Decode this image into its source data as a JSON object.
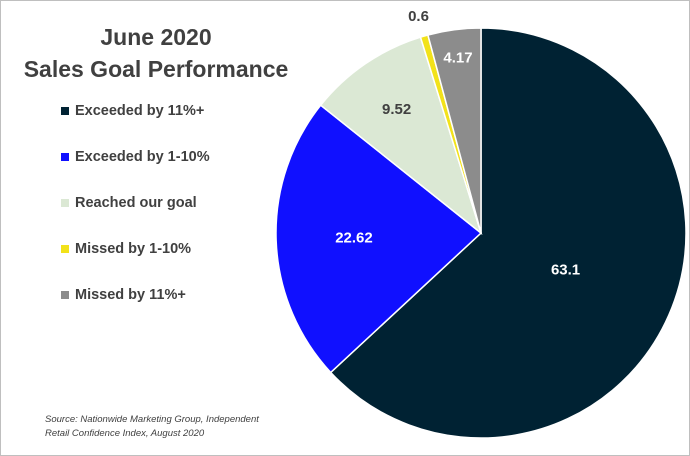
{
  "chart_data": {
    "type": "pie",
    "title_lines": [
      "June 2020",
      "Sales Goal Performance"
    ],
    "categories": [
      "Exceeded by 11%+",
      "Exceeded by 1-10%",
      "Reached our goal",
      "Missed by 1-10%",
      "Missed by 11%+"
    ],
    "values": [
      63.1,
      22.62,
      9.52,
      0.6,
      4.17
    ],
    "value_labels": [
      "63.1",
      "22.62",
      "9.52",
      "0.6",
      "4.17"
    ],
    "colors": [
      "#002233",
      "#1010ff",
      "#dbe8d4",
      "#f2e21a",
      "#8c8c8c"
    ],
    "label_colors": [
      "#ffffff",
      "#ffffff",
      "#404040",
      "#404040",
      "#ffffff"
    ],
    "start_angle_deg": 0,
    "direction": "clockwise",
    "legend_position": "left"
  },
  "source": {
    "line1": "Source: Nationwide Marketing Group, Independent",
    "line2": "Retail Confidence Index, August 2020"
  }
}
